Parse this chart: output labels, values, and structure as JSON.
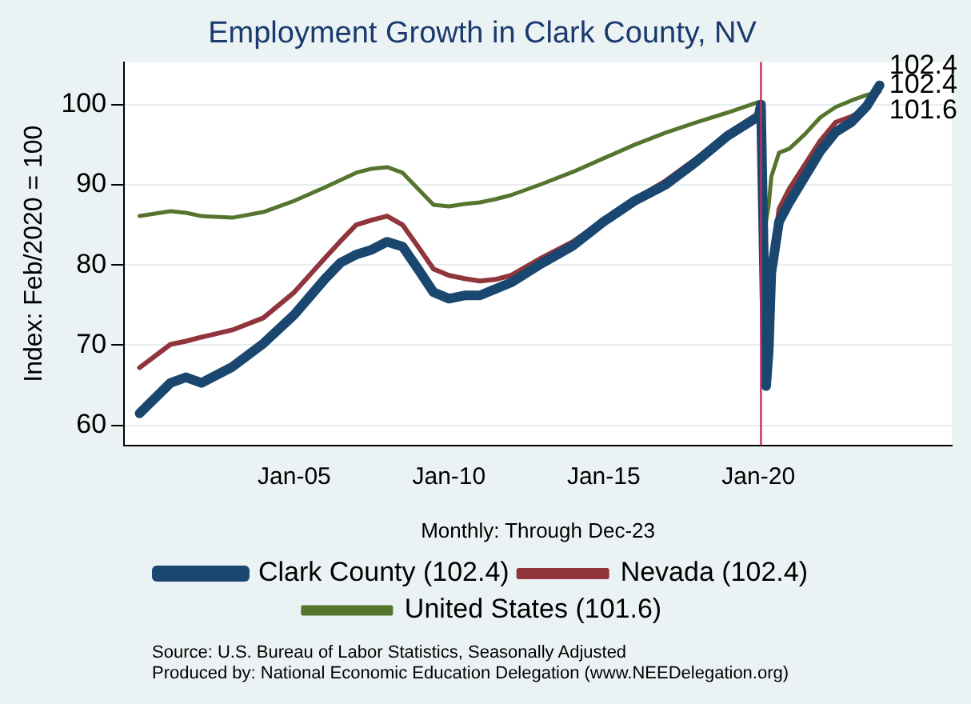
{
  "chart_data": {
    "type": "line",
    "title": "Employment Growth in Clark County, NV",
    "xlabel": "Monthly: Through Dec-23",
    "ylabel": "Index: Feb/2020 = 100",
    "xlim": [
      "1999-07",
      "2026-04"
    ],
    "ylim": [
      57.5,
      105.3
    ],
    "xticks": [
      {
        "value": "2005-01",
        "label": "Jan-05"
      },
      {
        "value": "2010-01",
        "label": "Jan-10"
      },
      {
        "value": "2015-01",
        "label": "Jan-15"
      },
      {
        "value": "2020-01",
        "label": "Jan-20"
      }
    ],
    "yticks": [
      60,
      70,
      80,
      90,
      100
    ],
    "grid": "y",
    "legend": "bottom",
    "marker": "none",
    "line_style": "solid",
    "x": [
      "2000-01",
      "2001-01",
      "2001-07",
      "2002-01",
      "2003-01",
      "2004-01",
      "2005-01",
      "2006-01",
      "2006-07",
      "2007-01",
      "2007-07",
      "2008-01",
      "2008-07",
      "2009-01",
      "2009-07",
      "2010-01",
      "2010-07",
      "2011-01",
      "2011-07",
      "2012-01",
      "2013-01",
      "2014-01",
      "2015-01",
      "2016-01",
      "2017-01",
      "2018-01",
      "2019-01",
      "2020-01",
      "2020-02",
      "2020-04",
      "2020-05",
      "2020-06",
      "2020-09",
      "2021-01",
      "2021-07",
      "2022-01",
      "2022-07",
      "2023-01",
      "2023-07",
      "2023-12"
    ],
    "series": [
      {
        "name": "Clark County (102.4)",
        "color": "#1a476f",
        "values": [
          61.5,
          65.3,
          66,
          65.3,
          67.3,
          70.2,
          73.8,
          78.3,
          80.3,
          81.3,
          81.9,
          82.9,
          82.3,
          79.5,
          76.6,
          75.8,
          76.2,
          76.2,
          77,
          77.8,
          80.2,
          82.4,
          85.4,
          88,
          90,
          92.9,
          96.1,
          98.5,
          100,
          64.9,
          69.3,
          79,
          85.4,
          87.8,
          91,
          94.2,
          96.6,
          97.8,
          99.8,
          102.4
        ]
      },
      {
        "name": "Nevada (102.4)",
        "color": "#90353b",
        "values": [
          67.2,
          70.1,
          70.5,
          71,
          71.9,
          73.4,
          76.6,
          80.9,
          83,
          85,
          85.6,
          86.1,
          85,
          82.3,
          79.5,
          78.7,
          78.3,
          78,
          78.2,
          78.7,
          80.9,
          82.9,
          85.6,
          88.2,
          90.5,
          93.3,
          96.4,
          98.9,
          100,
          67.7,
          72,
          79.5,
          87,
          89.5,
          92.5,
          95.5,
          97.8,
          98.5,
          99.5,
          102.4
        ]
      },
      {
        "name": "United States (101.6)",
        "color": "#55752f",
        "values": [
          86.1,
          86.7,
          86.5,
          86.1,
          85.9,
          86.6,
          88,
          89.7,
          90.6,
          91.5,
          92,
          92.2,
          91.5,
          89.5,
          87.5,
          87.3,
          87.6,
          87.8,
          88.2,
          88.7,
          90.1,
          91.6,
          93.3,
          95,
          96.5,
          97.8,
          99,
          100.3,
          100,
          85.5,
          87.5,
          91,
          94,
          94.5,
          96.3,
          98.4,
          99.7,
          100.5,
          101.2,
          101.6
        ]
      }
    ],
    "ref_lines": [
      {
        "axis": "x",
        "value": "2020-02",
        "color": "#c0305a"
      }
    ],
    "annotations": [
      {
        "text": "102.4",
        "x": "2023-12",
        "y": 102.4
      },
      {
        "text": "102.4",
        "x": "2023-12",
        "y": 102.4
      },
      {
        "text": "101.6",
        "x": "2023-12",
        "y": 101.6
      },
      "Source: U.S. Bureau of Labor Statistics, Seasonally Adjusted",
      "Produced by: National Economic Education Delegation (www.NEEDelegation.org)"
    ]
  }
}
